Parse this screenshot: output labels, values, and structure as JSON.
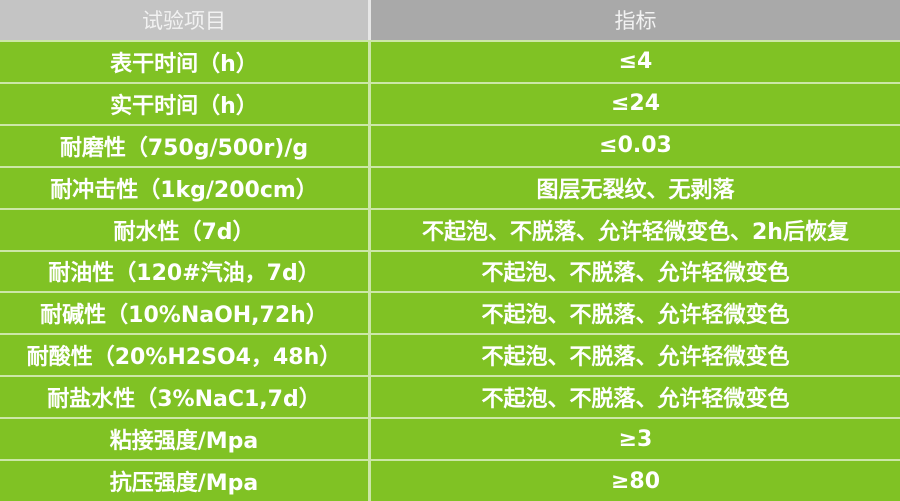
{
  "chart_data": {
    "type": "table",
    "title": "",
    "columns": [
      "试验项目",
      "指标"
    ],
    "rows": [
      [
        "表干时间（h）",
        "≤4"
      ],
      [
        "实干时间（h）",
        "≤24"
      ],
      [
        "耐磨性（750g/500r)/g",
        "≤0.03"
      ],
      [
        "耐冲击性（1kg/200cm）",
        "图层无裂纹、无剥落"
      ],
      [
        "耐水性（7d）",
        "不起泡、不脱落、允许轻微变色、2h后恢复"
      ],
      [
        "耐油性（120#汽油，7d）",
        "不起泡、不脱落、允许轻微变色"
      ],
      [
        "耐碱性（10%NaOH,72h）",
        "不起泡、不脱落、允许轻微变色"
      ],
      [
        "耐酸性（20%H2SO4，48h）",
        "不起泡、不脱落、允许轻微变色"
      ],
      [
        "耐盐水性（3%NaC1,7d）",
        "不起泡、不脱落、允许轻微变色"
      ],
      [
        "粘接强度/Mpa",
        "≥3"
      ],
      [
        "抗压强度/Mpa",
        "≥80"
      ]
    ]
  },
  "colors": {
    "row_green": "#80c224",
    "separator": "rgba(255, 255, 255, 0.6)",
    "header_left_gray": "#c4c4c4",
    "header_right_gray": "#a9a9a9",
    "text_white": "#ffffff"
  }
}
